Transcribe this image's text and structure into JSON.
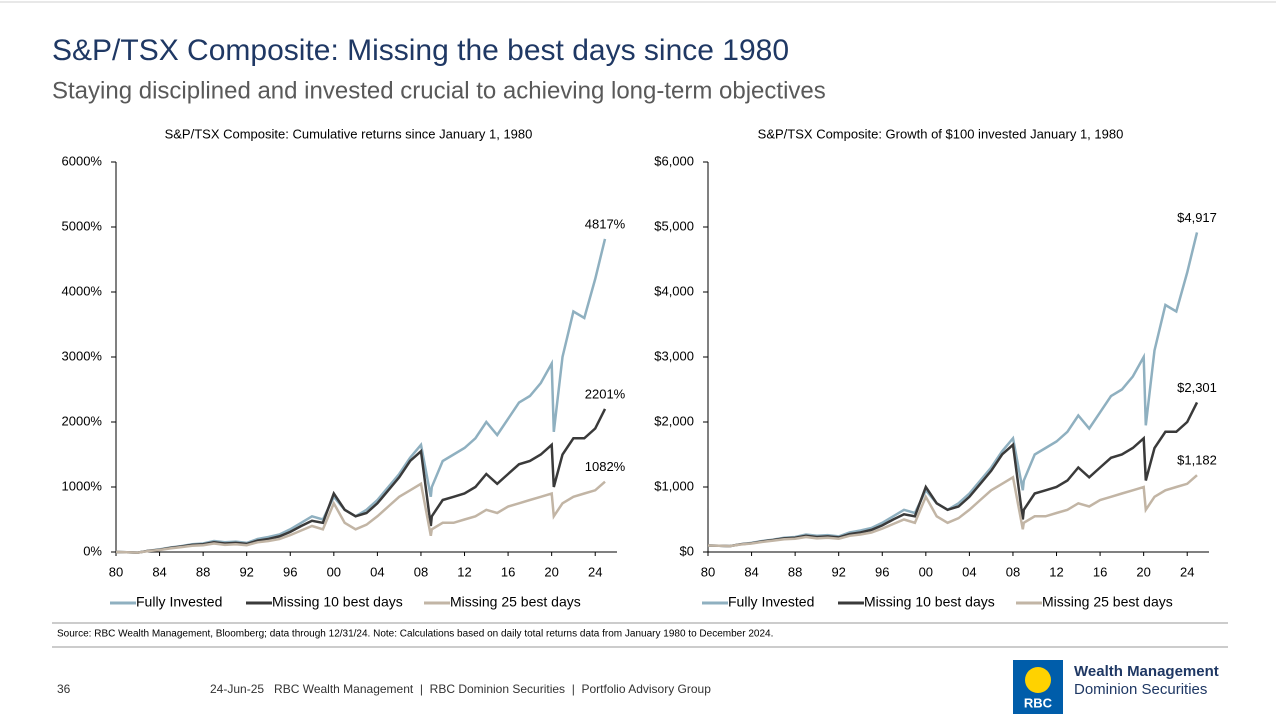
{
  "header": {
    "title": "S&P/TSX Composite: Missing the best days since 1980",
    "subtitle": "Staying disciplined and invested crucial to achieving long-term objectives"
  },
  "chart_data": [
    {
      "type": "line",
      "title": "S&P/TSX Composite: Cumulative returns since January 1, 1980",
      "x": [
        1980,
        1981,
        1982,
        1983,
        1984,
        1985,
        1986,
        1987,
        1988,
        1989,
        1990,
        1991,
        1992,
        1993,
        1994,
        1995,
        1996,
        1997,
        1998,
        1999,
        2000,
        2001,
        2002,
        2003,
        2004,
        2005,
        2006,
        2007,
        2008,
        2008.9,
        2009,
        2010,
        2011,
        2012,
        2013,
        2014,
        2015,
        2016,
        2017,
        2018,
        2019,
        2020,
        2020.2,
        2021,
        2022,
        2023,
        2024,
        2024.9
      ],
      "series": [
        {
          "name": "Fully Invested",
          "color": "#8fb0c0",
          "end_label": "4817%",
          "values": [
            0,
            -5,
            -10,
            20,
            40,
            70,
            90,
            120,
            130,
            170,
            150,
            160,
            140,
            200,
            230,
            270,
            350,
            450,
            550,
            500,
            850,
            650,
            550,
            650,
            800,
            1000,
            1200,
            1450,
            1650,
            850,
            1000,
            1400,
            1500,
            1600,
            1750,
            2000,
            1800,
            2050,
            2300,
            2400,
            2600,
            2900,
            1850,
            3000,
            3700,
            3600,
            4200,
            4817
          ]
        },
        {
          "name": "Missing 10 best days",
          "color": "#3a3a3a",
          "end_label": "2201%",
          "values": [
            0,
            -5,
            -10,
            18,
            35,
            65,
            85,
            110,
            120,
            150,
            130,
            140,
            125,
            175,
            200,
            240,
            310,
            400,
            480,
            450,
            900,
            650,
            550,
            600,
            750,
            950,
            1150,
            1400,
            1550,
            400,
            550,
            800,
            850,
            900,
            1000,
            1200,
            1050,
            1200,
            1350,
            1400,
            1500,
            1650,
            1000,
            1500,
            1750,
            1750,
            1900,
            2201
          ]
        },
        {
          "name": "Missing 25 best days",
          "color": "#c2b5a5",
          "end_label": "1082%",
          "values": [
            0,
            -5,
            -10,
            15,
            30,
            55,
            75,
            95,
            105,
            130,
            110,
            120,
            105,
            150,
            170,
            200,
            260,
            330,
            400,
            350,
            750,
            450,
            350,
            420,
            550,
            700,
            850,
            950,
            1050,
            250,
            350,
            450,
            450,
            500,
            550,
            650,
            600,
            700,
            750,
            800,
            850,
            900,
            550,
            750,
            850,
            900,
            950,
            1082
          ]
        }
      ],
      "xlim": [
        1980,
        2026
      ],
      "xticks": [
        {
          "value": 1980,
          "label": "80"
        },
        {
          "value": 1984,
          "label": "84"
        },
        {
          "value": 1988,
          "label": "88"
        },
        {
          "value": 1992,
          "label": "92"
        },
        {
          "value": 1996,
          "label": "96"
        },
        {
          "value": 2000,
          "label": "00"
        },
        {
          "value": 2004,
          "label": "04"
        },
        {
          "value": 2008,
          "label": "08"
        },
        {
          "value": 2012,
          "label": "12"
        },
        {
          "value": 2016,
          "label": "16"
        },
        {
          "value": 2020,
          "label": "20"
        },
        {
          "value": 2024,
          "label": "24"
        }
      ],
      "ylim": [
        0,
        6000
      ],
      "yticks": [
        {
          "value": 0,
          "label": "0%"
        },
        {
          "value": 1000,
          "label": "1000%"
        },
        {
          "value": 2000,
          "label": "2000%"
        },
        {
          "value": 3000,
          "label": "3000%"
        },
        {
          "value": 4000,
          "label": "4000%"
        },
        {
          "value": 5000,
          "label": "5000%"
        },
        {
          "value": 6000,
          "label": "6000%"
        }
      ],
      "grid": false,
      "legend": "bottom"
    },
    {
      "type": "line",
      "title": "S&P/TSX Composite: Growth of $100 invested January 1, 1980",
      "x": [
        1980,
        1981,
        1982,
        1983,
        1984,
        1985,
        1986,
        1987,
        1988,
        1989,
        1990,
        1991,
        1992,
        1993,
        1994,
        1995,
        1996,
        1997,
        1998,
        1999,
        2000,
        2001,
        2002,
        2003,
        2004,
        2005,
        2006,
        2007,
        2008,
        2008.9,
        2009,
        2010,
        2011,
        2012,
        2013,
        2014,
        2015,
        2016,
        2017,
        2018,
        2019,
        2020,
        2020.2,
        2021,
        2022,
        2023,
        2024,
        2024.9
      ],
      "series": [
        {
          "name": "Fully Invested",
          "color": "#8fb0c0",
          "end_label": "$4,917",
          "values": [
            100,
            95,
            90,
            120,
            140,
            170,
            190,
            220,
            230,
            270,
            250,
            260,
            240,
            300,
            330,
            370,
            450,
            550,
            650,
            600,
            950,
            750,
            650,
            750,
            900,
            1100,
            1300,
            1550,
            1750,
            950,
            1100,
            1500,
            1600,
            1700,
            1850,
            2100,
            1900,
            2150,
            2400,
            2500,
            2700,
            3000,
            1950,
            3100,
            3800,
            3700,
            4300,
            4917
          ]
        },
        {
          "name": "Missing 10 best days",
          "color": "#3a3a3a",
          "end_label": "$2,301",
          "values": [
            100,
            95,
            90,
            118,
            135,
            165,
            185,
            210,
            220,
            250,
            230,
            240,
            225,
            275,
            300,
            340,
            410,
            500,
            580,
            550,
            1000,
            750,
            650,
            700,
            850,
            1050,
            1250,
            1500,
            1650,
            500,
            650,
            900,
            950,
            1000,
            1100,
            1300,
            1150,
            1300,
            1450,
            1500,
            1600,
            1750,
            1100,
            1600,
            1850,
            1850,
            2000,
            2301
          ]
        },
        {
          "name": "Missing 25 best days",
          "color": "#c2b5a5",
          "end_label": "$1,182",
          "values": [
            100,
            95,
            90,
            115,
            130,
            155,
            175,
            195,
            205,
            230,
            210,
            220,
            205,
            250,
            270,
            300,
            360,
            430,
            500,
            450,
            850,
            550,
            450,
            520,
            650,
            800,
            950,
            1050,
            1150,
            350,
            450,
            550,
            550,
            600,
            650,
            750,
            700,
            800,
            850,
            900,
            950,
            1000,
            650,
            850,
            950,
            1000,
            1050,
            1182
          ]
        }
      ],
      "xlim": [
        1980,
        2026
      ],
      "xticks": [
        {
          "value": 1980,
          "label": "80"
        },
        {
          "value": 1984,
          "label": "84"
        },
        {
          "value": 1988,
          "label": "88"
        },
        {
          "value": 1992,
          "label": "92"
        },
        {
          "value": 1996,
          "label": "96"
        },
        {
          "value": 2000,
          "label": "00"
        },
        {
          "value": 2004,
          "label": "04"
        },
        {
          "value": 2008,
          "label": "08"
        },
        {
          "value": 2012,
          "label": "12"
        },
        {
          "value": 2016,
          "label": "16"
        },
        {
          "value": 2020,
          "label": "20"
        },
        {
          "value": 2024,
          "label": "24"
        }
      ],
      "ylim": [
        0,
        6000
      ],
      "yticks": [
        {
          "value": 0,
          "label": "$0"
        },
        {
          "value": 1000,
          "label": "$1,000"
        },
        {
          "value": 2000,
          "label": "$2,000"
        },
        {
          "value": 3000,
          "label": "$3,000"
        },
        {
          "value": 4000,
          "label": "$4,000"
        },
        {
          "value": 5000,
          "label": "$5,000"
        },
        {
          "value": 6000,
          "label": "$6,000"
        }
      ],
      "grid": false,
      "legend": "bottom"
    }
  ],
  "source": "Source: RBC Wealth Management, Bloomberg; data through 12/31/24. Note: Calculations based on daily total returns data from January 1980 to December 2024.",
  "footer": {
    "page": "36",
    "text": "24-Jun-25   RBC Wealth Management  |  RBC Dominion Securities  |  Portfolio Advisory Group"
  },
  "logo": {
    "mark": "RBC",
    "line1": "Wealth Management",
    "line2": "Dominion Securities"
  }
}
